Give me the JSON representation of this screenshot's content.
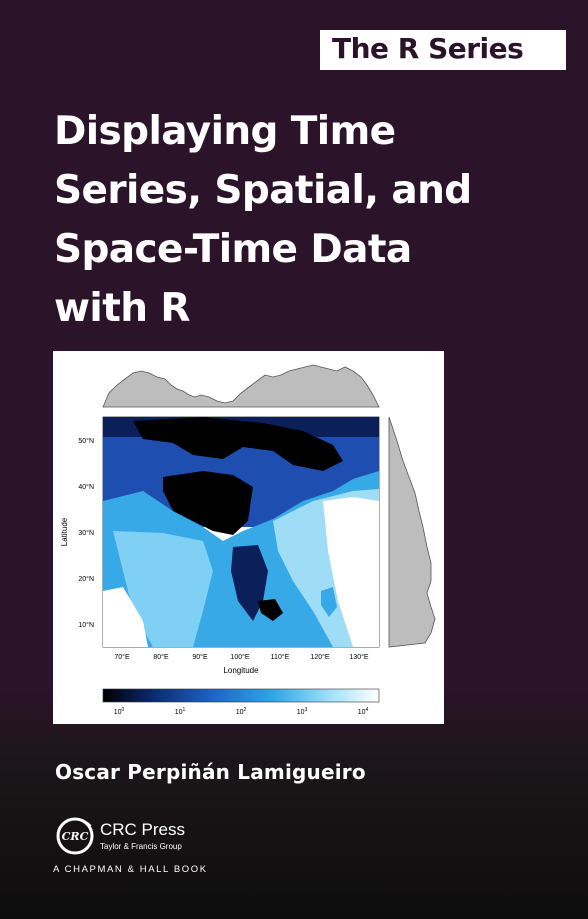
{
  "series_label": "The R Series",
  "title_lines": [
    "Displaying Time",
    "Series, Spatial, and",
    "Space-Time Data",
    "with R"
  ],
  "author": "Oscar Perpiñán Lamigueiro",
  "figure": {
    "ylabel": "Latitude",
    "xlabel": "Longitude",
    "lat_ticks": [
      "50°N",
      "40°N",
      "30°N",
      "20°N",
      "10°N"
    ],
    "lon_ticks": [
      "70°E",
      "80°E",
      "90°E",
      "100°E",
      "110°E",
      "120°E",
      "130°E"
    ],
    "colorbar_ticks": [
      "0",
      "1",
      "2",
      "3",
      "4"
    ],
    "colors": {
      "land_high": "#ffffff",
      "mid": "#5bc8ef",
      "low": "#1e50b4",
      "zero": "#000000",
      "profile_fill": "#bdbdbd"
    }
  },
  "publisher": {
    "logo_text": "CRC",
    "name": "CRC Press",
    "group": "Taylor & Francis Group",
    "imprint": "A CHAPMAN & HALL BOOK"
  },
  "colors": {
    "background": "#2b1329",
    "title": "#ffffff",
    "series_box": "#ffffff"
  }
}
